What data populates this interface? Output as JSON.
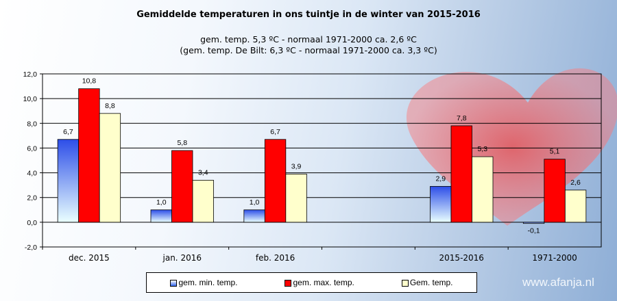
{
  "chart_data": {
    "type": "bar",
    "title": "Gemiddelde temperaturen in ons tuintje in de winter van 2015-2016",
    "subtitle": [
      "gem. temp. 5,3 ºC - normaal 1971-2000 ca. 2,6 ºC",
      "(gem. temp. De Bilt: 6,3 ºC - normaal 1971-2000 ca. 3,3 ºC)"
    ],
    "categories": [
      "dec. 2015",
      "jan. 2016",
      "feb. 2016",
      "",
      "2015-2016",
      "1971-2000"
    ],
    "series": [
      {
        "name": "gem. min. temp.",
        "color": "#3355ee",
        "values": [
          6.7,
          1.0,
          1.0,
          null,
          2.9,
          -0.1
        ],
        "labels": [
          "6,7",
          "1,0",
          "1,0",
          "",
          "2,9",
          "-0,1"
        ]
      },
      {
        "name": "gem. max. temp.",
        "color": "#ff0000",
        "values": [
          10.8,
          5.8,
          6.7,
          null,
          7.8,
          5.1
        ],
        "labels": [
          "10,8",
          "5,8",
          "6,7",
          "",
          "7,8",
          "5,1"
        ]
      },
      {
        "name": "Gem. temp.",
        "color": "#ffffcc",
        "values": [
          8.8,
          3.4,
          3.9,
          null,
          5.3,
          2.6
        ],
        "labels": [
          "8,8",
          "3,4",
          "3,9",
          "",
          "5,3",
          "2,6"
        ]
      }
    ],
    "ylim": [
      -2,
      12
    ],
    "yticks": [
      "-2,0",
      "0,0",
      "2,0",
      "4,0",
      "6,0",
      "8,0",
      "10,0",
      "12,0"
    ],
    "grid": true,
    "legend": "bottom"
  },
  "watermark": "www.afanja.nl"
}
